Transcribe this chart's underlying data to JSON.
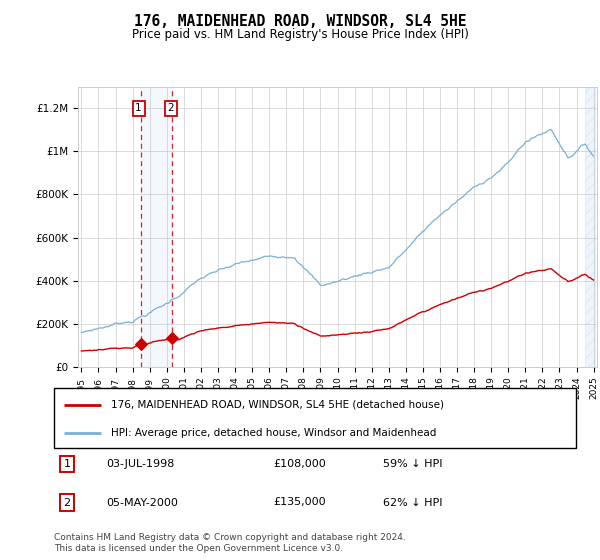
{
  "title": "176, MAIDENHEAD ROAD, WINDSOR, SL4 5HE",
  "subtitle": "Price paid vs. HM Land Registry's House Price Index (HPI)",
  "legend_line1": "176, MAIDENHEAD ROAD, WINDSOR, SL4 5HE (detached house)",
  "legend_line2": "HPI: Average price, detached house, Windsor and Maidenhead",
  "footer": "Contains HM Land Registry data © Crown copyright and database right 2024.\nThis data is licensed under the Open Government Licence v3.0.",
  "sale1_date": "03-JUL-1998",
  "sale1_price": "£108,000",
  "sale1_hpi": "59% ↓ HPI",
  "sale2_date": "05-MAY-2000",
  "sale2_price": "£135,000",
  "sale2_hpi": "62% ↓ HPI",
  "red_color": "#cc0000",
  "blue_color": "#7ab0d4",
  "background_color": "#ffffff",
  "grid_color": "#cccccc",
  "ylim": [
    0,
    1300000
  ],
  "yticks": [
    0,
    200000,
    400000,
    600000,
    800000,
    1000000,
    1200000
  ],
  "ytick_labels": [
    "£0",
    "£200K",
    "£400K",
    "£600K",
    "£800K",
    "£1M",
    "£1.2M"
  ],
  "sale1_year": 1998.5,
  "sale2_year": 2000.33,
  "sale1_price_val": 108000,
  "sale2_price_val": 135000
}
